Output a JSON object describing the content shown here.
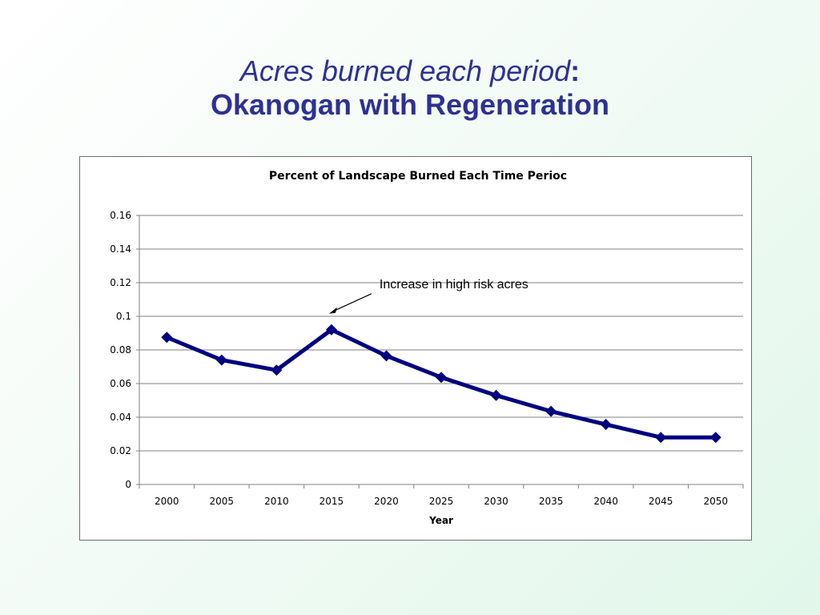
{
  "slide": {
    "title_italic": "Acres burned each period",
    "title_colon": ":",
    "title_line2": "Okanogan with Regeneration"
  },
  "colors": {
    "title": "#2e3192",
    "series": "#000080",
    "gridline": "#808080"
  },
  "chart_data": {
    "type": "line",
    "title": "Percent of Landscape Burned Each Time Perioc",
    "xlabel": "Year",
    "ylabel": "",
    "categories": [
      "2000",
      "2005",
      "2010",
      "2015",
      "2020",
      "2025",
      "2030",
      "2035",
      "2040",
      "2045",
      "2050"
    ],
    "series": [
      {
        "values": [
          0.0875,
          0.074,
          0.068,
          0.092,
          0.0765,
          0.0637,
          0.053,
          0.0435,
          0.0357,
          0.028,
          0.028
        ]
      }
    ],
    "ylim": [
      0,
      0.16
    ],
    "yticks": [
      "0",
      "0.02",
      "0.04",
      "0.06",
      "0.08",
      "0.1",
      "0.12",
      "0.14",
      "0.16"
    ],
    "grid": true,
    "legend": "none",
    "marker": "diamond",
    "annotation": {
      "text": "Increase in high risk acres",
      "points_to": "2015"
    }
  }
}
